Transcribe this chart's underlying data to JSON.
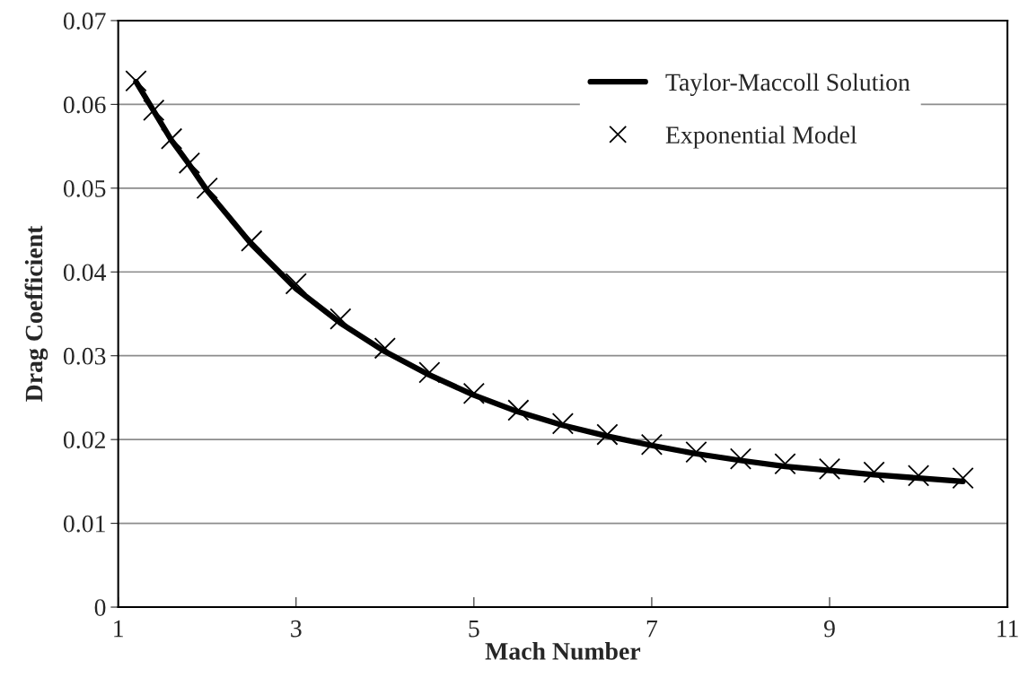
{
  "chart_data": {
    "type": "line",
    "xlabel": "Mach Number",
    "ylabel": "Drag Coefficient",
    "xlim": [
      1,
      11
    ],
    "xticks": [
      1,
      3,
      5,
      7,
      9,
      11
    ],
    "ylim": [
      0,
      0.07
    ],
    "yticks": [
      0,
      0.01,
      0.02,
      0.03,
      0.04,
      0.05,
      0.06,
      0.07
    ],
    "grid": "y",
    "legend": "top right",
    "series": [
      {
        "name": "Taylor-Maccoll Solution",
        "color": "#000000",
        "line_style": "solid",
        "x": [
          1.2,
          1.4,
          1.6,
          1.8,
          2.0,
          2.5,
          3,
          3.5,
          4,
          4.5,
          5,
          5.5,
          6,
          6.5,
          7,
          7.5,
          8,
          8.5,
          9,
          9.5,
          10,
          10.5
        ],
        "values": [
          0.0627,
          0.0592,
          0.0557,
          0.0528,
          0.0497,
          0.0433,
          0.038,
          0.0339,
          0.0305,
          0.0277,
          0.0253,
          0.0233,
          0.0217,
          0.0204,
          0.0193,
          0.0183,
          0.0175,
          0.0168,
          0.0163,
          0.0158,
          0.0154,
          0.015
        ]
      },
      {
        "name": "Exponential Model",
        "type": "scatter",
        "color": "#000000",
        "marker": "cross",
        "x": [
          1.2,
          1.4,
          1.6,
          1.8,
          2.0,
          2.5,
          3,
          3.5,
          4,
          4.5,
          5,
          5.5,
          6,
          6.5,
          7,
          7.5,
          8,
          8.5,
          9,
          9.5,
          10,
          10.5
        ],
        "values": [
          0.0628,
          0.0593,
          0.0559,
          0.053,
          0.05,
          0.0437,
          0.0386,
          0.0344,
          0.0309,
          0.028,
          0.0255,
          0.0235,
          0.0219,
          0.0206,
          0.0194,
          0.0185,
          0.0177,
          0.0171,
          0.0165,
          0.0161,
          0.0157,
          0.0154
        ]
      }
    ]
  }
}
